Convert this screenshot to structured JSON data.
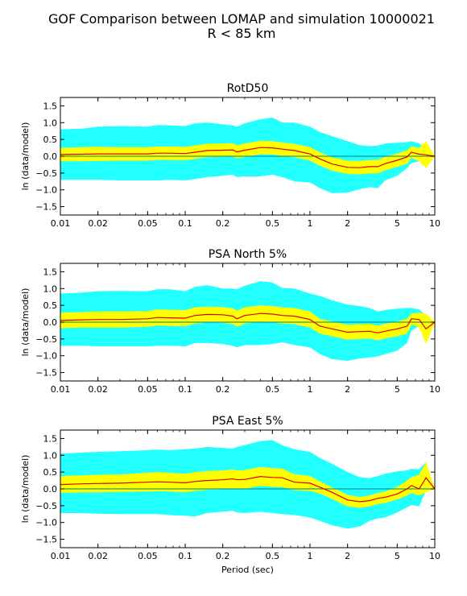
{
  "figure": {
    "title_line1": "GOF Comparison between LOMAP and simulation 10000021",
    "title_line2": "R < 85 km"
  },
  "colors": {
    "outer_band": "#22ffff",
    "inner_band": "#ffff00",
    "mean_line": "#dd0000",
    "zero_line": "#008080",
    "axes": "#000000",
    "background": "#ffffff"
  },
  "chart_data": [
    {
      "type": "area",
      "title": "RotD50",
      "xlabel": "",
      "ylabel": "ln (data/model)",
      "xscale": "log",
      "xlim": [
        0.01,
        10
      ],
      "ylim": [
        -1.75,
        1.75
      ],
      "xticks": [
        0.01,
        0.02,
        0.05,
        0.1,
        0.2,
        0.5,
        1,
        2,
        5,
        10
      ],
      "xtick_labels": [
        "0.01",
        "0.02",
        "0.05",
        "0.1",
        "0.2",
        "0.5",
        "1",
        "2",
        "5",
        "10"
      ],
      "yticks": [
        -1.5,
        -1.0,
        -0.5,
        0.0,
        0.5,
        1.0,
        1.5
      ],
      "ytick_labels": [
        "−1.5",
        "−1.0",
        "−0.5",
        "0.0",
        "0.5",
        "1.0",
        "1.5"
      ],
      "x": [
        0.01,
        0.015,
        0.02,
        0.03,
        0.05,
        0.06,
        0.075,
        0.1,
        0.12,
        0.15,
        0.2,
        0.24,
        0.26,
        0.3,
        0.4,
        0.5,
        0.6,
        0.75,
        1.0,
        1.2,
        1.5,
        2.0,
        2.5,
        3.0,
        3.5,
        4.0,
        5.0,
        6.0,
        6.5,
        7.5,
        8.5,
        10.0
      ],
      "series": [
        {
          "role": "mean",
          "values": [
            0.05,
            0.06,
            0.07,
            0.07,
            0.07,
            0.09,
            0.09,
            0.08,
            0.12,
            0.17,
            0.18,
            0.19,
            0.13,
            0.18,
            0.26,
            0.25,
            0.21,
            0.17,
            0.07,
            -0.08,
            -0.23,
            -0.33,
            -0.34,
            -0.31,
            -0.31,
            -0.22,
            -0.12,
            -0.02,
            0.12,
            0.06,
            0.04,
            0.0
          ]
        },
        {
          "role": "inner_upper",
          "values": [
            0.25,
            0.27,
            0.28,
            0.27,
            0.27,
            0.29,
            0.29,
            0.28,
            0.32,
            0.37,
            0.38,
            0.39,
            0.33,
            0.38,
            0.46,
            0.45,
            0.41,
            0.37,
            0.27,
            0.12,
            -0.03,
            -0.13,
            -0.14,
            -0.11,
            -0.11,
            -0.02,
            0.08,
            0.18,
            0.3,
            0.25,
            0.45,
            0.0
          ]
        },
        {
          "role": "inner_lower",
          "values": [
            -0.15,
            -0.15,
            -0.14,
            -0.13,
            -0.13,
            -0.11,
            -0.11,
            -0.12,
            -0.08,
            -0.03,
            -0.02,
            -0.01,
            -0.07,
            -0.02,
            0.06,
            0.05,
            0.01,
            -0.03,
            -0.13,
            -0.28,
            -0.43,
            -0.53,
            -0.54,
            -0.51,
            -0.51,
            -0.42,
            -0.32,
            -0.22,
            -0.05,
            -0.15,
            -0.35,
            0.0
          ]
        },
        {
          "role": "outer_upper",
          "values": [
            0.8,
            0.82,
            0.88,
            0.9,
            0.88,
            0.93,
            0.92,
            0.9,
            0.98,
            1.0,
            0.95,
            0.92,
            0.88,
            0.98,
            1.1,
            1.15,
            1.0,
            1.0,
            0.88,
            0.72,
            0.6,
            0.45,
            0.33,
            0.3,
            0.32,
            0.38,
            0.4,
            0.42,
            0.45,
            0.38,
            0.2,
            0.0
          ]
        },
        {
          "role": "outer_lower",
          "values": [
            -0.7,
            -0.7,
            -0.7,
            -0.72,
            -0.72,
            -0.72,
            -0.7,
            -0.72,
            -0.68,
            -0.62,
            -0.58,
            -0.55,
            -0.62,
            -0.6,
            -0.6,
            -0.55,
            -0.62,
            -0.75,
            -0.78,
            -0.95,
            -1.1,
            -1.08,
            -0.98,
            -0.92,
            -0.95,
            -0.72,
            -0.58,
            -0.35,
            -0.2,
            -0.15,
            -0.2,
            0.0
          ]
        }
      ]
    },
    {
      "type": "area",
      "title": "PSA North 5%",
      "xlabel": "",
      "ylabel": "ln (data/model)",
      "xscale": "log",
      "xlim": [
        0.01,
        10
      ],
      "ylim": [
        -1.75,
        1.75
      ],
      "xticks": [
        0.01,
        0.02,
        0.05,
        0.1,
        0.2,
        0.5,
        1,
        2,
        5,
        10
      ],
      "xtick_labels": [
        "0.01",
        "0.02",
        "0.05",
        "0.1",
        "0.2",
        "0.5",
        "1",
        "2",
        "5",
        "10"
      ],
      "yticks": [
        -1.5,
        -1.0,
        -0.5,
        0.0,
        0.5,
        1.0,
        1.5
      ],
      "ytick_labels": [
        "−1.5",
        "−1.0",
        "−0.5",
        "0.0",
        "0.5",
        "1.0",
        "1.5"
      ],
      "x": [
        0.01,
        0.015,
        0.02,
        0.03,
        0.05,
        0.06,
        0.075,
        0.1,
        0.12,
        0.15,
        0.2,
        0.24,
        0.26,
        0.3,
        0.4,
        0.5,
        0.6,
        0.75,
        1.0,
        1.2,
        1.5,
        2.0,
        2.5,
        3.0,
        3.5,
        4.0,
        5.0,
        6.0,
        6.5,
        7.5,
        8.5,
        10.0
      ],
      "series": [
        {
          "role": "mean",
          "values": [
            0.05,
            0.07,
            0.08,
            0.08,
            0.1,
            0.14,
            0.13,
            0.12,
            0.2,
            0.23,
            0.22,
            0.18,
            0.1,
            0.2,
            0.26,
            0.24,
            0.2,
            0.18,
            0.08,
            -0.12,
            -0.2,
            -0.3,
            -0.28,
            -0.27,
            -0.32,
            -0.27,
            -0.2,
            -0.12,
            0.1,
            0.08,
            -0.2,
            0.0
          ]
        },
        {
          "role": "inner_upper",
          "values": [
            0.28,
            0.3,
            0.32,
            0.32,
            0.33,
            0.38,
            0.37,
            0.36,
            0.44,
            0.46,
            0.45,
            0.41,
            0.34,
            0.44,
            0.5,
            0.48,
            0.44,
            0.42,
            0.32,
            0.1,
            0.02,
            -0.08,
            -0.06,
            -0.05,
            -0.1,
            -0.05,
            0.02,
            0.1,
            0.26,
            0.28,
            0.25,
            0.0
          ]
        },
        {
          "role": "inner_lower",
          "values": [
            -0.18,
            -0.16,
            -0.16,
            -0.16,
            -0.14,
            -0.1,
            -0.11,
            -0.12,
            -0.04,
            -0.01,
            -0.02,
            -0.06,
            -0.14,
            -0.04,
            0.02,
            0.0,
            -0.04,
            -0.06,
            -0.16,
            -0.34,
            -0.42,
            -0.52,
            -0.5,
            -0.49,
            -0.54,
            -0.49,
            -0.42,
            -0.34,
            -0.08,
            -0.15,
            -0.65,
            0.0
          ]
        },
        {
          "role": "outer_upper",
          "values": [
            0.85,
            0.88,
            0.92,
            0.93,
            0.92,
            0.98,
            0.98,
            0.92,
            1.05,
            1.1,
            1.0,
            1.0,
            0.98,
            1.08,
            1.22,
            1.18,
            1.02,
            1.0,
            0.85,
            0.78,
            0.65,
            0.52,
            0.48,
            0.42,
            0.32,
            0.36,
            0.4,
            0.42,
            0.42,
            0.38,
            0.2,
            0.0
          ]
        },
        {
          "role": "outer_lower",
          "values": [
            -0.7,
            -0.7,
            -0.72,
            -0.72,
            -0.72,
            -0.7,
            -0.7,
            -0.72,
            -0.62,
            -0.62,
            -0.65,
            -0.7,
            -0.75,
            -0.68,
            -0.68,
            -0.65,
            -0.6,
            -0.68,
            -0.75,
            -0.95,
            -1.1,
            -1.15,
            -1.08,
            -1.05,
            -1.02,
            -0.95,
            -0.85,
            -0.62,
            -0.25,
            -0.12,
            -0.3,
            0.0
          ]
        }
      ]
    },
    {
      "type": "area",
      "title": "PSA East 5%",
      "xlabel": "Period (sec)",
      "ylabel": "ln (data/model)",
      "xscale": "log",
      "xlim": [
        0.01,
        10
      ],
      "ylim": [
        -1.75,
        1.75
      ],
      "xticks": [
        0.01,
        0.02,
        0.05,
        0.1,
        0.2,
        0.5,
        1,
        2,
        5,
        10
      ],
      "xtick_labels": [
        "0.01",
        "0.02",
        "0.05",
        "0.1",
        "0.2",
        "0.5",
        "1",
        "2",
        "5",
        "10"
      ],
      "yticks": [
        -1.5,
        -1.0,
        -0.5,
        0.0,
        0.5,
        1.0,
        1.5
      ],
      "ytick_labels": [
        "−1.5",
        "−1.0",
        "−0.5",
        "0.0",
        "0.5",
        "1.0",
        "1.5"
      ],
      "x": [
        0.01,
        0.015,
        0.02,
        0.03,
        0.05,
        0.06,
        0.075,
        0.1,
        0.12,
        0.15,
        0.2,
        0.24,
        0.26,
        0.3,
        0.4,
        0.5,
        0.6,
        0.75,
        1.0,
        1.2,
        1.5,
        2.0,
        2.5,
        3.0,
        3.5,
        4.0,
        5.0,
        6.0,
        6.5,
        7.5,
        8.5,
        10.0
      ],
      "series": [
        {
          "role": "mean",
          "values": [
            0.13,
            0.15,
            0.16,
            0.17,
            0.2,
            0.21,
            0.2,
            0.18,
            0.22,
            0.25,
            0.27,
            0.3,
            0.27,
            0.28,
            0.37,
            0.34,
            0.33,
            0.2,
            0.17,
            0.05,
            -0.1,
            -0.33,
            -0.38,
            -0.35,
            -0.28,
            -0.25,
            -0.15,
            0.0,
            0.1,
            0.0,
            0.33,
            0.0
          ]
        },
        {
          "role": "inner_upper",
          "values": [
            0.38,
            0.4,
            0.42,
            0.43,
            0.48,
            0.5,
            0.48,
            0.45,
            0.5,
            0.53,
            0.55,
            0.58,
            0.55,
            0.56,
            0.65,
            0.62,
            0.6,
            0.44,
            0.38,
            0.22,
            0.05,
            -0.18,
            -0.24,
            -0.2,
            -0.12,
            -0.08,
            0.06,
            0.25,
            0.35,
            0.42,
            0.8,
            0.0
          ]
        },
        {
          "role": "inner_lower",
          "values": [
            -0.12,
            -0.1,
            -0.1,
            -0.09,
            -0.08,
            -0.07,
            -0.08,
            -0.1,
            -0.06,
            -0.03,
            -0.01,
            0.02,
            -0.01,
            0.0,
            0.09,
            0.06,
            0.05,
            -0.04,
            -0.06,
            -0.14,
            -0.3,
            -0.52,
            -0.56,
            -0.52,
            -0.45,
            -0.42,
            -0.32,
            -0.2,
            -0.12,
            -0.2,
            -0.1,
            0.0
          ]
        },
        {
          "role": "outer_upper",
          "values": [
            1.05,
            1.08,
            1.1,
            1.12,
            1.15,
            1.17,
            1.15,
            1.18,
            1.2,
            1.25,
            1.22,
            1.2,
            1.25,
            1.3,
            1.42,
            1.45,
            1.3,
            1.18,
            1.1,
            0.92,
            0.75,
            0.5,
            0.35,
            0.32,
            0.38,
            0.45,
            0.52,
            0.55,
            0.6,
            0.58,
            0.8,
            0.0
          ]
        },
        {
          "role": "outer_lower",
          "values": [
            -0.72,
            -0.72,
            -0.74,
            -0.75,
            -0.75,
            -0.75,
            -0.78,
            -0.8,
            -0.82,
            -0.72,
            -0.68,
            -0.65,
            -0.7,
            -0.72,
            -0.68,
            -0.72,
            -0.75,
            -0.78,
            -0.85,
            -0.95,
            -1.08,
            -1.18,
            -1.12,
            -0.95,
            -0.88,
            -0.85,
            -0.7,
            -0.55,
            -0.48,
            -0.52,
            -0.05,
            0.0
          ]
        }
      ]
    }
  ]
}
